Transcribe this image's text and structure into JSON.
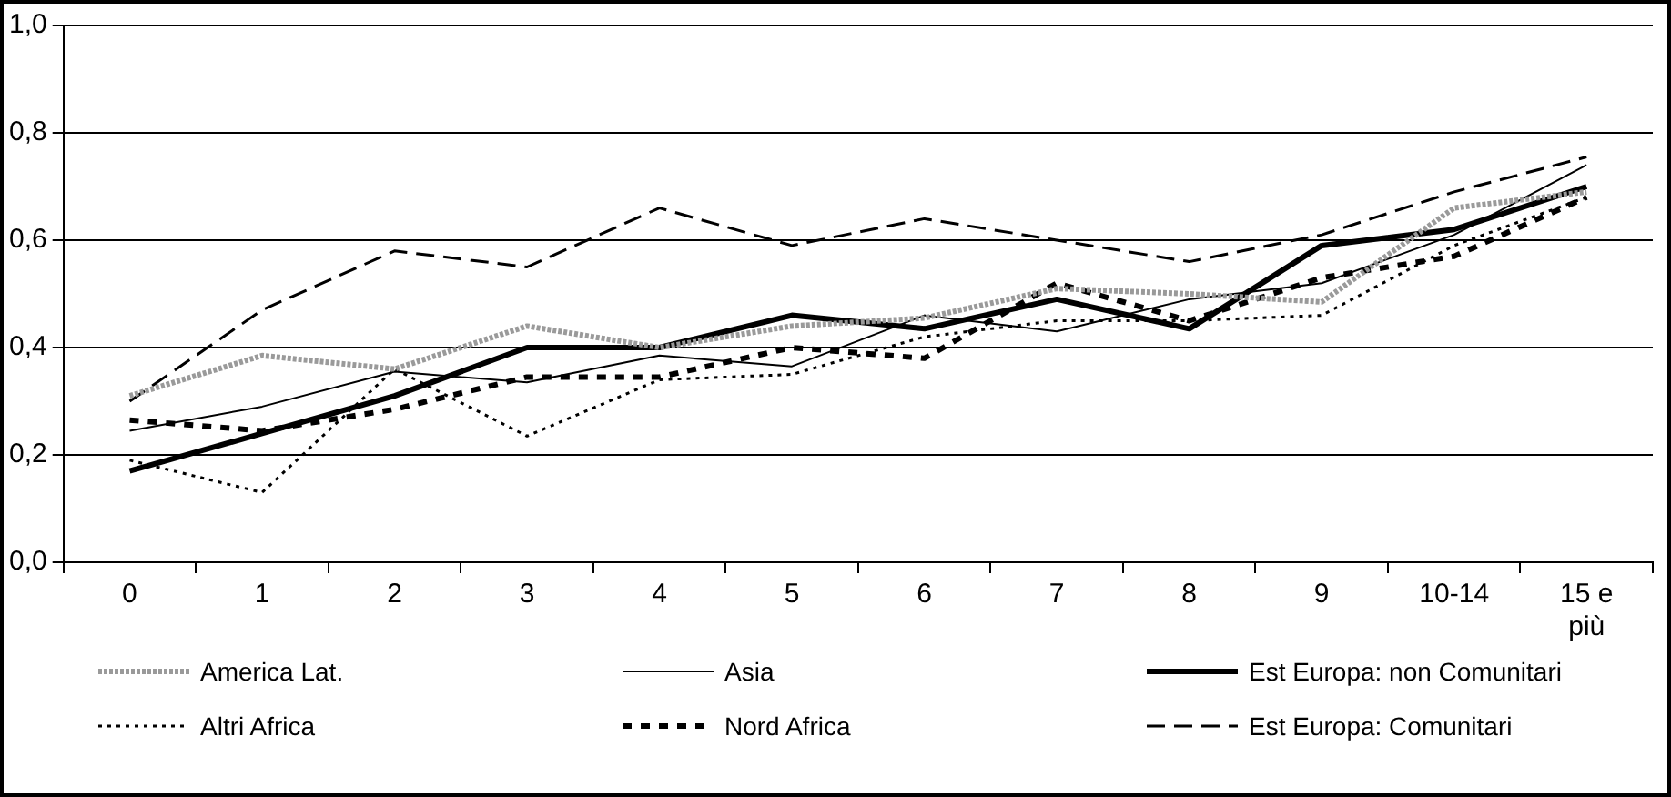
{
  "chart_data": {
    "type": "line",
    "categories": [
      "0",
      "1",
      "2",
      "3",
      "4",
      "5",
      "6",
      "7",
      "8",
      "9",
      "10-14",
      "15 e più"
    ],
    "series": [
      {
        "name": "America Lat.",
        "color": "#9a9a9a",
        "line_style": "dotted",
        "values": [
          0.31,
          0.385,
          0.36,
          0.44,
          0.4,
          0.44,
          0.455,
          0.51,
          0.5,
          0.485,
          0.66,
          0.69
        ]
      },
      {
        "name": "Asia",
        "color": "#000000",
        "line_style": "solid",
        "values": [
          0.245,
          0.29,
          0.355,
          0.335,
          0.385,
          0.365,
          0.46,
          0.43,
          0.49,
          0.52,
          0.61,
          0.74
        ]
      },
      {
        "name": "Est Europa: non Comunitari",
        "color": "#000000",
        "line_style": "solid",
        "values": [
          0.17,
          0.24,
          0.31,
          0.4,
          0.4,
          0.46,
          0.435,
          0.49,
          0.435,
          0.59,
          0.62,
          0.7
        ]
      },
      {
        "name": "Altri Africa",
        "color": "#000000",
        "line_style": "dotted",
        "values": [
          0.19,
          0.13,
          0.36,
          0.235,
          0.34,
          0.35,
          0.42,
          0.45,
          0.45,
          0.46,
          0.59,
          0.68
        ]
      },
      {
        "name": "Nord Africa",
        "color": "#000000",
        "line_style": "dashed",
        "values": [
          0.265,
          0.245,
          0.285,
          0.345,
          0.345,
          0.4,
          0.38,
          0.52,
          0.45,
          0.53,
          0.57,
          0.68
        ]
      },
      {
        "name": "Est Europa: Comunitari",
        "color": "#000000",
        "line_style": "dashed",
        "values": [
          0.3,
          0.47,
          0.58,
          0.55,
          0.66,
          0.59,
          0.64,
          0.6,
          0.56,
          0.61,
          0.69,
          0.755
        ]
      }
    ],
    "ylim": [
      0,
      1
    ],
    "yticks": [
      {
        "value": 0,
        "label": "0,0"
      },
      {
        "value": 0.2,
        "label": "0,2"
      },
      {
        "value": 0.4,
        "label": "0,4"
      },
      {
        "value": 0.6,
        "label": "0,6"
      },
      {
        "value": 0.8,
        "label": "0,8"
      },
      {
        "value": 1,
        "label": "1,0"
      }
    ],
    "grid": "y",
    "legend": "bottom",
    "marker": "none"
  }
}
